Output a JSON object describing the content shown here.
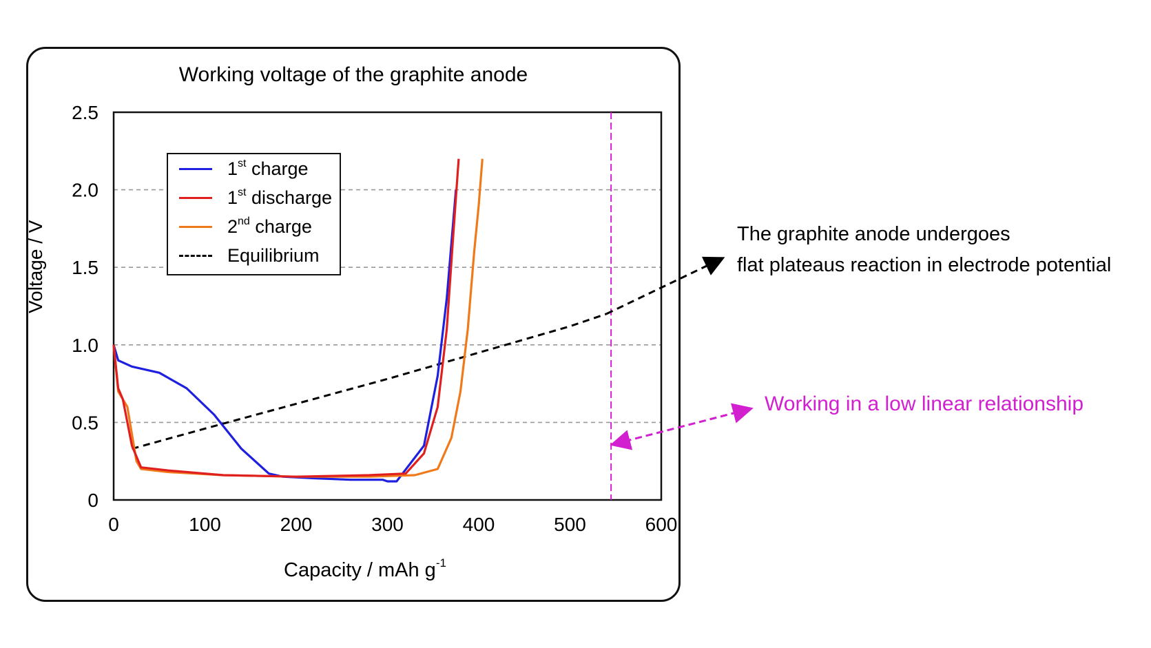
{
  "title": "Working voltage of the graphite anode",
  "annotations": {
    "black_line1": "The graphite anode undergoes",
    "black_line2": "flat plateaus reaction in electrode potential",
    "magenta": "Working in a low linear relationship"
  },
  "legend": [
    {
      "base": "1",
      "sup": "st",
      "rest": " charge",
      "color": "#1f1fe0"
    },
    {
      "base": "1",
      "sup": "st",
      "rest": " discharge",
      "color": "#e01f1f"
    },
    {
      "base": "2",
      "sup": "nd",
      "rest": " charge",
      "color": "#f07a1a"
    },
    {
      "base": "",
      "sup": "",
      "rest": "Equilibrium",
      "color": "#000000",
      "dashed": true
    }
  ],
  "axes": {
    "ylabel": "Voltage / V",
    "xlabel_base": "Capacity / mAh g",
    "xlabel_sup": "-1",
    "xticks": [
      "0",
      "100",
      "200",
      "300",
      "400",
      "500",
      "600"
    ],
    "yticks": [
      "0",
      "0.5",
      "1.0",
      "1.5",
      "2.0",
      "2.5"
    ]
  },
  "chart_data": {
    "type": "line",
    "title": "Working voltage of the graphite anode",
    "xlabel": "Capacity / mAh g-1",
    "ylabel": "Voltage / V",
    "xlim": [
      0,
      600
    ],
    "ylim": [
      0,
      2.5
    ],
    "grid": "horizontal dashed at 0.5, 1.0, 1.5, 2.0",
    "legend_position": "top-left",
    "series": [
      {
        "name": "1st charge",
        "color": "#1f1fe0",
        "x": [
          0,
          5,
          20,
          50,
          80,
          110,
          140,
          170,
          185,
          220,
          260,
          295,
          300,
          310,
          340,
          355,
          365,
          375
        ],
        "y": [
          1.0,
          0.9,
          0.86,
          0.82,
          0.72,
          0.55,
          0.33,
          0.17,
          0.15,
          0.14,
          0.13,
          0.13,
          0.12,
          0.12,
          0.35,
          0.8,
          1.3,
          2.0
        ]
      },
      {
        "name": "1st discharge",
        "color": "#e01f1f",
        "x": [
          0,
          5,
          10,
          20,
          30,
          60,
          120,
          200,
          280,
          320,
          340,
          355,
          365,
          372,
          378
        ],
        "y": [
          1.0,
          0.72,
          0.65,
          0.35,
          0.21,
          0.19,
          0.16,
          0.15,
          0.16,
          0.17,
          0.3,
          0.6,
          1.1,
          1.7,
          2.2
        ]
      },
      {
        "name": "2nd charge",
        "color": "#f07a1a",
        "x": [
          0,
          5,
          15,
          25,
          30,
          60,
          120,
          200,
          280,
          330,
          355,
          370,
          380,
          388,
          395,
          400,
          404
        ],
        "y": [
          1.0,
          0.7,
          0.6,
          0.25,
          0.2,
          0.18,
          0.16,
          0.15,
          0.15,
          0.16,
          0.2,
          0.4,
          0.7,
          1.1,
          1.6,
          1.9,
          2.2
        ]
      },
      {
        "name": "Equilibrium",
        "color": "#000000",
        "dashed": true,
        "x": [
          20,
          100,
          200,
          300,
          400,
          500,
          540
        ],
        "y": [
          0.33,
          0.46,
          0.62,
          0.78,
          0.95,
          1.12,
          1.2
        ]
      }
    ],
    "annotations": [
      {
        "text": "The graphite anode undergoes flat plateaus reaction in electrode potential",
        "color": "#000000"
      },
      {
        "text": "Working in a low linear relationship",
        "color": "#d21fd0"
      }
    ]
  }
}
